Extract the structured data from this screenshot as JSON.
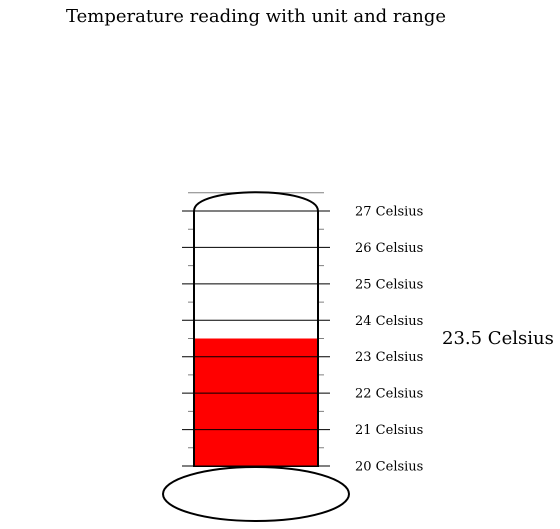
{
  "chart_data": {
    "type": "thermometer",
    "title": "Temperature reading with unit and range",
    "unit": "Celsius",
    "value": 23.5,
    "value_label": "23.5 Celsius",
    "range": [
      20,
      27
    ],
    "major_ticks": [
      20,
      21,
      22,
      23,
      24,
      25,
      26,
      27
    ],
    "tick_labels": [
      "20 Celsius",
      "21 Celsius",
      "22 Celsius",
      "23 Celsius",
      "24 Celsius",
      "25 Celsius",
      "26 Celsius",
      "27 Celsius"
    ],
    "fill_color": "#ff0000",
    "outline_color": "#000000",
    "minor_tick_color": "#808080"
  }
}
